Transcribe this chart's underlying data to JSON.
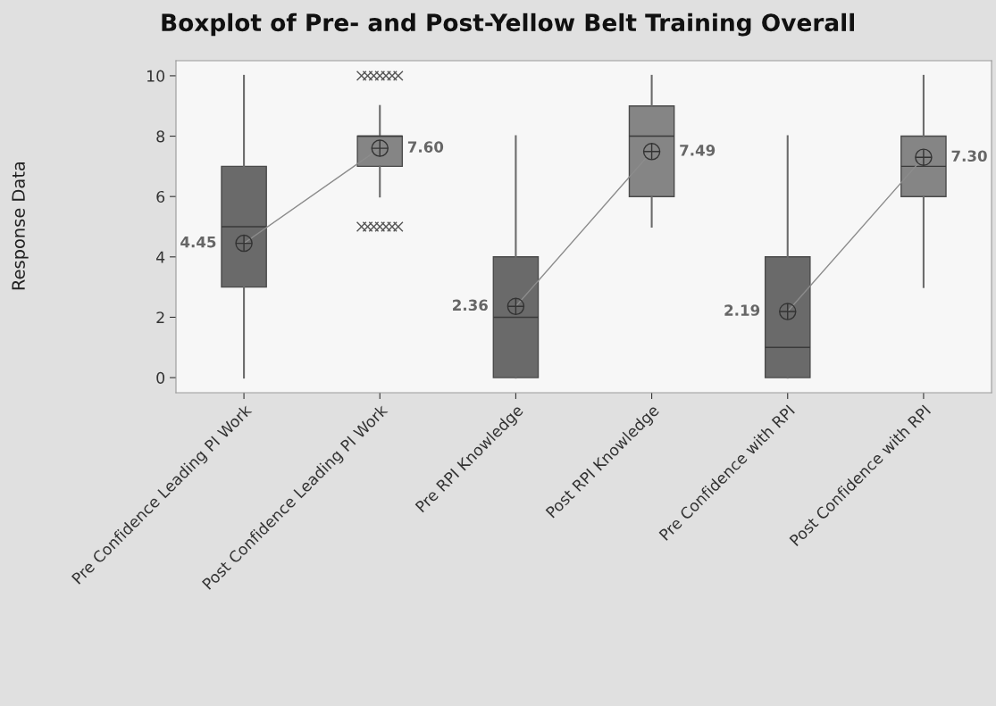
{
  "chart_data": {
    "type": "box",
    "title": "Boxplot of Pre- and Post-Yellow Belt Training Overall",
    "ylabel": "Response Data",
    "categories": [
      "Pre Confidence Leading PI Work",
      "Post Confidence Leading PI Work",
      "Pre RPI Knowledge",
      "Post RPI Knowledge",
      "Pre Confidence with RPI",
      "Post Confidence with RPI"
    ],
    "colors": [
      "#6a6a6a",
      "#858585",
      "#6a6a6a",
      "#858585",
      "#6a6a6a",
      "#858585"
    ],
    "boxes": [
      {
        "low": 0,
        "q1": 3,
        "median": 5,
        "q3": 7,
        "high": 10
      },
      {
        "low": 6,
        "q1": 7,
        "median": 8,
        "q3": 8,
        "high": 9,
        "outliers": [
          10,
          10,
          10,
          10,
          10,
          10,
          10,
          5,
          5,
          5,
          5,
          5,
          5,
          5
        ]
      },
      {
        "low": 0,
        "q1": 0,
        "median": 2,
        "q3": 4,
        "high": 8
      },
      {
        "low": 5,
        "q1": 6,
        "median": 8,
        "q3": 9,
        "high": 10
      },
      {
        "low": 0,
        "q1": 0,
        "median": 1,
        "q3": 4,
        "high": 8
      },
      {
        "low": 3,
        "q1": 6,
        "median": 7,
        "q3": 8,
        "high": 10
      }
    ],
    "series": [
      {
        "type": "line",
        "color": "#8c8c8c",
        "values": [
          4.45,
          7.6,
          null,
          null,
          null,
          null
        ],
        "value_labels": [
          "4.45",
          "7.60",
          null,
          null,
          null,
          null
        ]
      },
      {
        "type": "line",
        "color": "#8c8c8c",
        "values": [
          null,
          null,
          2.36,
          7.49,
          null,
          null
        ],
        "value_labels": [
          null,
          null,
          "2.36",
          "7.49",
          null,
          null
        ]
      },
      {
        "type": "line",
        "color": "#8c8c8c",
        "values": [
          null,
          null,
          null,
          null,
          2.19,
          7.3
        ],
        "value_labels": [
          null,
          null,
          null,
          null,
          "2.19",
          "7.30"
        ]
      }
    ],
    "marker": "circle",
    "ylim": [
      -0.5,
      10.5
    ],
    "yticks": [
      0,
      2,
      4,
      6,
      8,
      10
    ],
    "grid": false,
    "legend": false
  }
}
